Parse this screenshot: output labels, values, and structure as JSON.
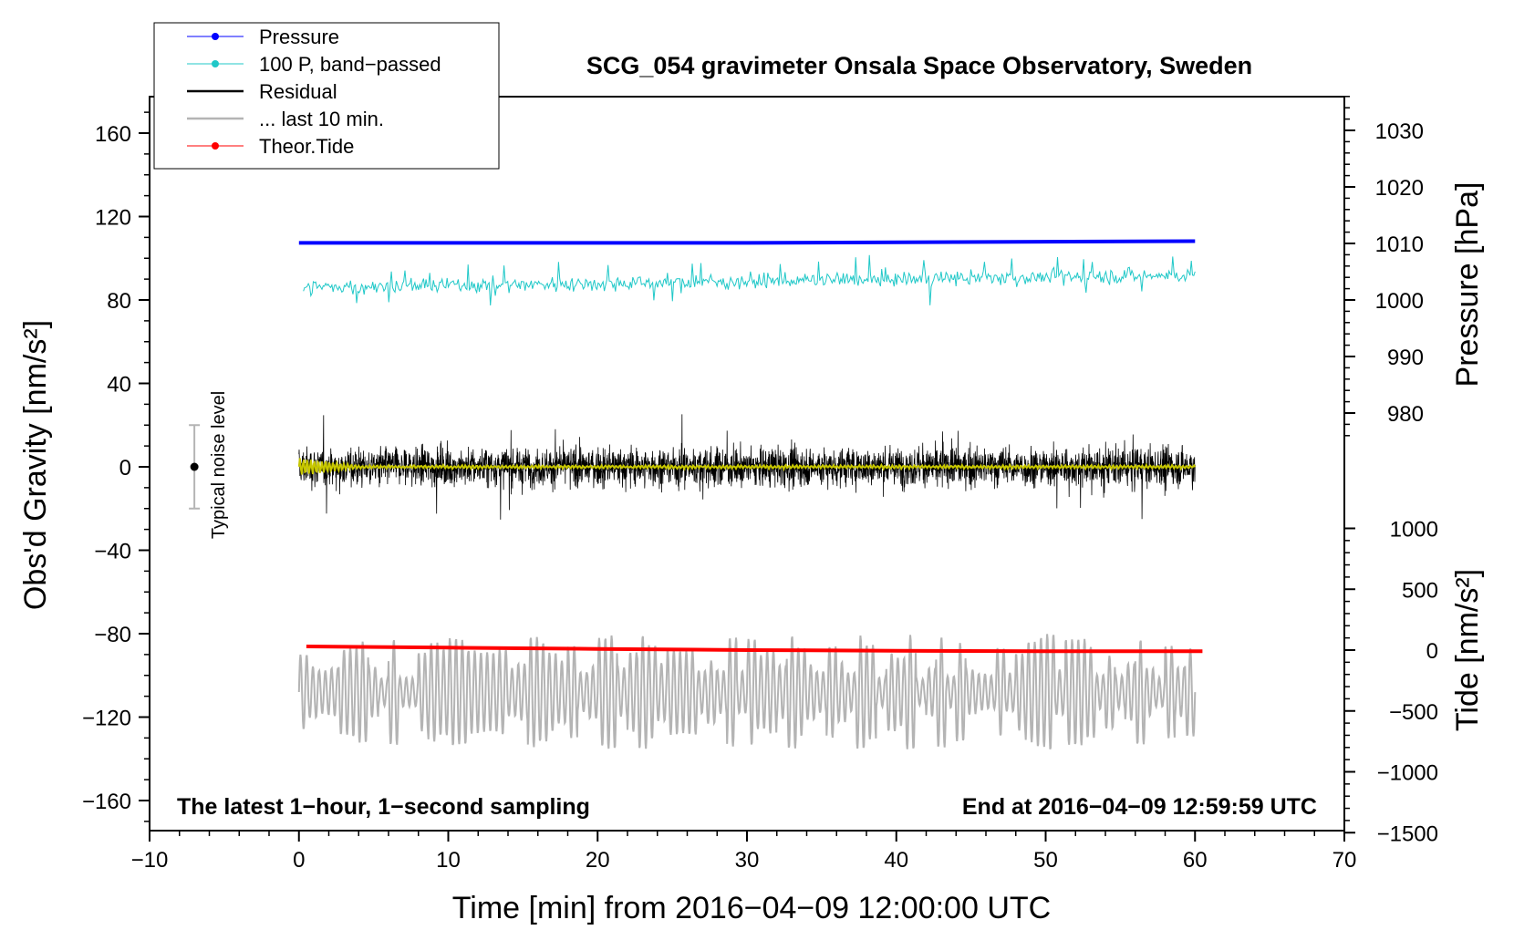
{
  "chart_data": {
    "type": "line",
    "title": "SCG_054 gravimeter Onsala Space Observatory, Sweden",
    "xlabel": "Time [min] from 2016−04−09 12:00:00 UTC",
    "ylabel_left": "Obs'd Gravity [nm/s²]",
    "ylabel_right_pressure": "Pressure [hPa]",
    "ylabel_right_tide": "Tide [nm/s²]",
    "xlim": [
      -10,
      70
    ],
    "ylim_left": [
      -175,
      180
    ],
    "x_ticks": [
      "−10",
      "0",
      "10",
      "20",
      "30",
      "40",
      "50",
      "60",
      "70"
    ],
    "x_tick_values": [
      -10,
      0,
      10,
      20,
      30,
      40,
      50,
      60,
      70
    ],
    "y_left_ticks": [
      "−160",
      "−120",
      "−80",
      "−40",
      "0",
      "40",
      "80",
      "120",
      "160"
    ],
    "y_left_tick_values": [
      -160,
      -120,
      -80,
      -40,
      0,
      40,
      80,
      120,
      160
    ],
    "pressure_ticks": [
      "980",
      "990",
      "1000",
      "1010",
      "1020",
      "1030"
    ],
    "pressure_tick_values": [
      980,
      990,
      1000,
      1010,
      1020,
      1030
    ],
    "tide_ticks": [
      "−1500",
      "−1000",
      "−500",
      "0",
      "500",
      "1000"
    ],
    "tide_tick_values": [
      -1500,
      -1000,
      -500,
      0,
      500,
      1000
    ],
    "legend": [
      {
        "label": "Pressure",
        "color": "#0000ff",
        "marker": true
      },
      {
        "label": "100 P, band−passed",
        "color": "#20c8c8",
        "marker": true
      },
      {
        "label": "Residual",
        "color": "#000000",
        "marker": false
      },
      {
        "label": "... last 10 min.",
        "color": "#b4b4b4",
        "marker": false
      },
      {
        "label": "Theor.Tide",
        "color": "#ff0000",
        "marker": true
      }
    ],
    "series": [
      {
        "name": "Pressure",
        "color": "#0000ff",
        "axis": "pressure",
        "x": [
          0,
          30,
          60
        ],
        "values": [
          1010.1,
          1010.1,
          1010.4
        ]
      },
      {
        "name": "100 P, band-passed",
        "color": "#20c8c8",
        "axis": "left",
        "x_range": [
          0.3,
          60
        ],
        "baseline_start": 86,
        "baseline_end": 92,
        "amplitude": 5
      },
      {
        "name": "Residual",
        "color": "#000000",
        "axis": "left",
        "x_range": [
          0,
          60
        ],
        "baseline": 0,
        "amplitude": 14,
        "peak_range": [
          -42,
          42
        ]
      },
      {
        "name": "Residual smoothed",
        "color": "#c8c800",
        "axis": "left",
        "x_range": [
          0,
          60
        ],
        "baseline": 0,
        "amplitude": 1.5
      },
      {
        "name": "... last 10 min.",
        "color": "#b4b4b4",
        "axis": "left",
        "x_range": [
          0,
          60
        ],
        "baseline": -108,
        "range": [
          -140,
          -67
        ]
      },
      {
        "name": "Theor.Tide",
        "color": "#ff0000",
        "axis": "tide",
        "x": [
          0.5,
          10,
          20,
          30,
          40,
          50,
          60.5
        ],
        "values": [
          30,
          20,
          10,
          0,
          -5,
          -10,
          -10
        ]
      }
    ],
    "noise_bar": {
      "label": "Typical noise level",
      "x": -7,
      "center": 0,
      "low": -20,
      "high": 20
    },
    "annotation_left": "The latest 1−hour, 1−second sampling",
    "annotation_right": "End at 2016−04−09 12:59:59 UTC"
  }
}
